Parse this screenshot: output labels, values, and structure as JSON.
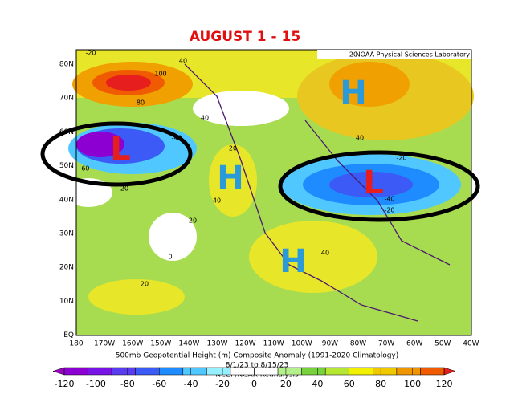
{
  "header": {
    "title": "AUGUST 1 - 15"
  },
  "map": {
    "source": "NOAA Physical Sciences Laboratory",
    "lat_labels": [
      "80N",
      "70N",
      "60N",
      "50N",
      "40N",
      "30N",
      "20N",
      "10N",
      "EQ"
    ],
    "lon_labels": [
      "180",
      "170W",
      "160W",
      "150W",
      "140W",
      "130W",
      "120W",
      "110W",
      "100W",
      "90W",
      "80W",
      "70W",
      "60W",
      "50W",
      "40W"
    ],
    "centers": [
      "L",
      "H",
      "H",
      "L",
      "H"
    ],
    "contour_labels": [
      "-20",
      "40",
      "100",
      "80",
      "40",
      "-40",
      "-60",
      "20",
      "20",
      "-20",
      "-40",
      "-20",
      "40",
      "20",
      "40",
      "0",
      "20",
      "40",
      "20"
    ],
    "caption": [
      "500mb Geopotential Height (m) Composite Anomaly (1991-2020 Climatology)",
      "8/1/23 to 8/15/23",
      "NCEP/NCAR Reanalysis"
    ]
  },
  "colorbar": {
    "ticks": [
      -120,
      -100,
      -80,
      -60,
      -40,
      -20,
      0,
      20,
      40,
      60,
      80,
      100,
      120
    ],
    "colors": [
      "#a000c8",
      "#8c00d2",
      "#7814e6",
      "#5a3cf0",
      "#3c5af5",
      "#1e8cff",
      "#50c8ff",
      "#96f0ff",
      "#ffffff",
      "#ffffff",
      "#b4f08c",
      "#78d23c",
      "#b4e632",
      "#f0f000",
      "#f0c800",
      "#f09600",
      "#f05a00",
      "#e61e1e"
    ]
  }
}
